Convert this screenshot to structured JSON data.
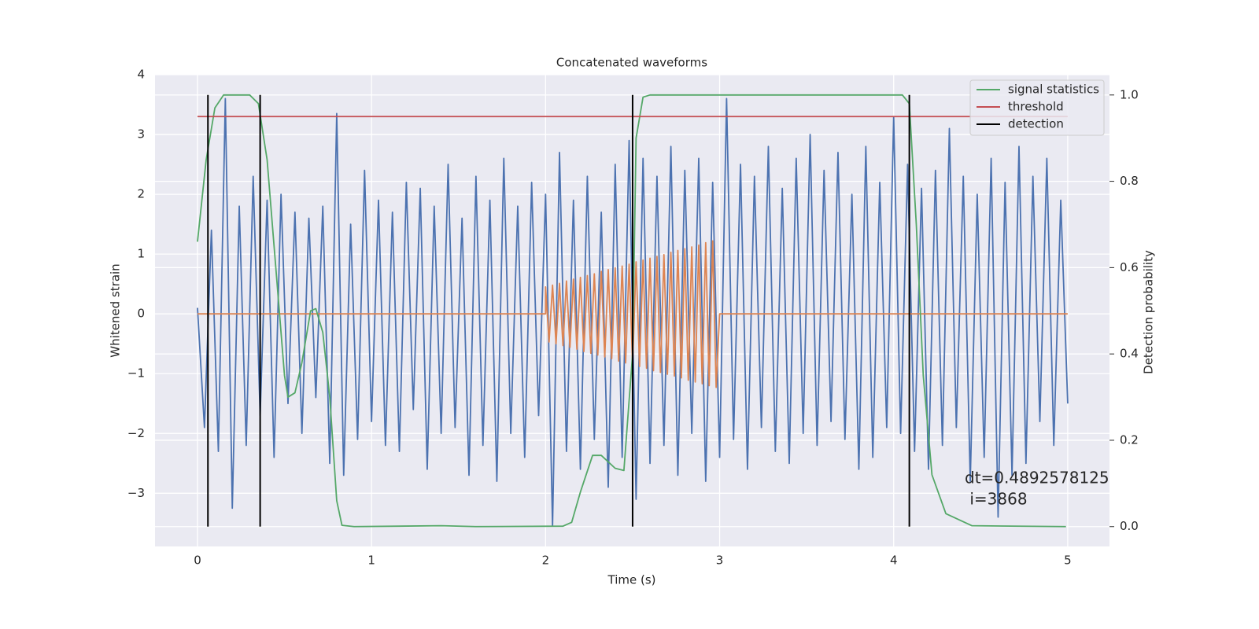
{
  "chart_data": {
    "type": "line",
    "title": "Concatenated waveforms",
    "xlabel": "Time (s)",
    "ylabel": "Whitened strain",
    "y2label": "Detection probability",
    "xlim": [
      -0.244,
      5.24
    ],
    "ylim": [
      -3.89,
      4.0
    ],
    "y2lim": [
      -0.046,
      1.047
    ],
    "xticks": [
      0,
      1,
      2,
      3,
      4,
      5
    ],
    "yticks": [
      {
        "value": -3,
        "label": "−3"
      },
      {
        "value": -2,
        "label": "−2"
      },
      {
        "value": -1,
        "label": "−1"
      },
      0,
      1,
      2,
      3,
      4
    ],
    "y2ticks": [
      {
        "value": 0,
        "label": "0.0"
      },
      0.2,
      0.4,
      0.6,
      0.8,
      {
        "value": 1,
        "label": "1.0"
      }
    ],
    "grid": true,
    "legend": "upper right",
    "series": [
      {
        "color": "#4c72b0",
        "axis": "y",
        "x": [
          0,
          0.04,
          0.08,
          0.12,
          0.16,
          0.2,
          0.24,
          0.28,
          0.32,
          0.36,
          0.4,
          0.44,
          0.48,
          0.52,
          0.56,
          0.6,
          0.64,
          0.68,
          0.72,
          0.76,
          0.8,
          0.84,
          0.88,
          0.92,
          0.96,
          1.0,
          1.04,
          1.08,
          1.12,
          1.16,
          1.2,
          1.24,
          1.28,
          1.32,
          1.36,
          1.4,
          1.44,
          1.48,
          1.52,
          1.56,
          1.6,
          1.64,
          1.68,
          1.72,
          1.76,
          1.8,
          1.84,
          1.88,
          1.92,
          1.96,
          2.0,
          2.04,
          2.08,
          2.12,
          2.16,
          2.2,
          2.24,
          2.28,
          2.32,
          2.36,
          2.4,
          2.44,
          2.48,
          2.52,
          2.56,
          2.6,
          2.64,
          2.68,
          2.72,
          2.76,
          2.8,
          2.84,
          2.88,
          2.92,
          2.96,
          3.0,
          3.04,
          3.08,
          3.12,
          3.16,
          3.2,
          3.24,
          3.28,
          3.32,
          3.36,
          3.4,
          3.44,
          3.48,
          3.52,
          3.56,
          3.6,
          3.64,
          3.68,
          3.72,
          3.76,
          3.8,
          3.84,
          3.88,
          3.92,
          3.96,
          4.0,
          4.04,
          4.08,
          4.12,
          4.16,
          4.2,
          4.24,
          4.28,
          4.32,
          4.36,
          4.4,
          4.44,
          4.48,
          4.52,
          4.56,
          4.6,
          4.64,
          4.68,
          4.72,
          4.76,
          4.8,
          4.84,
          4.88,
          4.92,
          4.96,
          5.0
        ],
        "values": [
          0.1,
          -1.9,
          1.4,
          -2.3,
          3.6,
          -3.25,
          1.8,
          -2.2,
          2.3,
          -1.7,
          1.9,
          -2.4,
          2.0,
          -1.5,
          1.7,
          -2.0,
          1.6,
          -1.4,
          1.8,
          -2.5,
          3.35,
          -2.7,
          1.5,
          -2.1,
          2.4,
          -1.8,
          1.9,
          -2.2,
          1.7,
          -2.3,
          2.2,
          -1.6,
          2.1,
          -2.6,
          1.8,
          -2.0,
          2.5,
          -1.9,
          1.6,
          -2.7,
          2.3,
          -2.2,
          1.9,
          -2.8,
          2.6,
          -2.0,
          1.8,
          -2.4,
          2.2,
          -1.7,
          2.0,
          -3.55,
          2.7,
          -2.3,
          1.9,
          -2.6,
          2.3,
          -2.1,
          1.7,
          -2.9,
          2.5,
          -2.4,
          2.9,
          -3.1,
          2.6,
          -2.5,
          2.3,
          -2.2,
          2.8,
          -2.7,
          2.4,
          -2.0,
          2.6,
          -2.8,
          2.2,
          -2.4,
          3.6,
          -2.1,
          2.5,
          -2.6,
          2.3,
          -1.9,
          2.8,
          -2.3,
          2.1,
          -2.5,
          2.6,
          -2.0,
          3.0,
          -2.2,
          2.4,
          -1.8,
          2.7,
          -2.1,
          2.0,
          -2.6,
          2.8,
          -2.4,
          2.2,
          -1.9,
          3.3,
          -2.0,
          2.5,
          -2.3,
          2.1,
          -2.6,
          2.4,
          -2.2,
          3.1,
          -1.9,
          2.3,
          -2.8,
          2.0,
          -2.4,
          2.6,
          -3.4,
          2.2,
          -2.7,
          2.8,
          -2.5,
          2.3,
          -1.8,
          2.6,
          -2.2,
          1.9,
          -1.5
        ]
      },
      {
        "color": "#dd8452",
        "axis": "y",
        "x": [
          0,
          2.0,
          2.0,
          2.02,
          2.04,
          2.06,
          2.08,
          2.1,
          2.12,
          2.14,
          2.16,
          2.18,
          2.2,
          2.22,
          2.24,
          2.26,
          2.28,
          2.3,
          2.32,
          2.34,
          2.36,
          2.38,
          2.4,
          2.42,
          2.44,
          2.46,
          2.48,
          2.5,
          2.52,
          2.54,
          2.56,
          2.58,
          2.6,
          2.62,
          2.64,
          2.66,
          2.68,
          2.7,
          2.72,
          2.74,
          2.76,
          2.78,
          2.8,
          2.82,
          2.84,
          2.86,
          2.88,
          2.9,
          2.92,
          2.94,
          2.96,
          2.98,
          3.0,
          5.0
        ],
        "values": [
          0,
          0,
          0.45,
          -0.47,
          0.48,
          -0.5,
          0.51,
          -0.53,
          0.55,
          -0.56,
          0.58,
          -0.59,
          0.61,
          -0.63,
          0.64,
          -0.66,
          0.67,
          -0.69,
          0.71,
          -0.72,
          0.74,
          -0.75,
          0.77,
          -0.79,
          0.8,
          -0.82,
          0.83,
          -0.85,
          0.87,
          -0.88,
          0.9,
          -0.91,
          0.93,
          -0.95,
          0.96,
          -0.98,
          0.99,
          -1.01,
          1.03,
          -1.04,
          1.06,
          -1.07,
          1.09,
          -1.11,
          1.12,
          -1.14,
          1.15,
          -1.17,
          1.19,
          -1.2,
          1.22,
          -1.23,
          0,
          0
        ]
      },
      {
        "name": "signal statistics",
        "color": "#55a868",
        "axis": "y2",
        "x": [
          0,
          0.05,
          0.1,
          0.15,
          0.3,
          0.35,
          0.4,
          0.45,
          0.5,
          0.52,
          0.56,
          0.6,
          0.65,
          0.68,
          0.72,
          0.76,
          0.8,
          0.83,
          0.9,
          1.4,
          1.6,
          2.1,
          2.15,
          2.2,
          2.27,
          2.32,
          2.4,
          2.45,
          2.5,
          2.52,
          2.56,
          2.6,
          4.05,
          4.09,
          4.13,
          4.17,
          4.22,
          4.3,
          4.45,
          4.99
        ],
        "values": [
          0.66,
          0.85,
          0.97,
          1.0,
          1.0,
          0.98,
          0.85,
          0.6,
          0.35,
          0.3,
          0.31,
          0.38,
          0.5,
          0.505,
          0.45,
          0.3,
          0.06,
          0.003,
          0.0,
          0.002,
          0.0,
          0.001,
          0.01,
          0.08,
          0.165,
          0.165,
          0.135,
          0.13,
          0.4,
          0.9,
          0.995,
          1.0,
          1.0,
          0.98,
          0.7,
          0.35,
          0.12,
          0.03,
          0.002,
          0.0
        ]
      },
      {
        "name": "threshold",
        "color": "#c44e52",
        "axis": "y2",
        "x": [
          0,
          5
        ],
        "values": [
          0.95,
          0.95
        ]
      }
    ],
    "detections": {
      "name": "detection",
      "color": "#000000",
      "x": [
        0.06,
        0.36,
        2.5,
        4.09
      ],
      "y2range": [
        0,
        1
      ]
    },
    "annotation": [
      "dt=0.4892578125",
      " i=3868"
    ]
  }
}
